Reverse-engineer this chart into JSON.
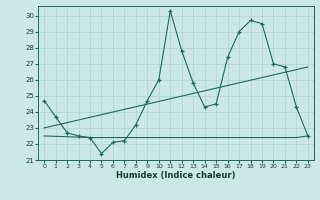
{
  "background_color": "#cce8e5",
  "grid_color": "#aad4ce",
  "line_color": "#1a6b5a",
  "xlabel": "Humidex (Indice chaleur)",
  "xlim": [
    -0.5,
    23.5
  ],
  "ylim": [
    21.0,
    30.6
  ],
  "yticks": [
    21,
    22,
    23,
    24,
    25,
    26,
    27,
    28,
    29,
    30
  ],
  "xticks": [
    0,
    1,
    2,
    3,
    4,
    5,
    6,
    7,
    8,
    9,
    10,
    11,
    12,
    13,
    14,
    15,
    16,
    17,
    18,
    19,
    20,
    21,
    22,
    23
  ],
  "main_x": [
    0,
    1,
    2,
    3,
    4,
    5,
    6,
    7,
    8,
    9,
    10,
    11,
    12,
    13,
    14,
    15,
    16,
    17,
    18,
    19,
    20,
    21,
    22,
    23
  ],
  "main_y": [
    24.7,
    23.7,
    22.7,
    22.5,
    22.4,
    21.4,
    22.1,
    22.2,
    23.2,
    24.7,
    26.0,
    30.3,
    27.8,
    25.8,
    24.3,
    24.5,
    27.4,
    29.0,
    29.7,
    29.5,
    27.0,
    26.8,
    24.3,
    22.5
  ],
  "flat_x": [
    0,
    4,
    5,
    6,
    7,
    8,
    9,
    10,
    11,
    12,
    13,
    14,
    15,
    16,
    17,
    18,
    19,
    20,
    21,
    22,
    23
  ],
  "flat_y": [
    22.5,
    22.4,
    22.4,
    22.4,
    22.4,
    22.4,
    22.4,
    22.4,
    22.4,
    22.4,
    22.4,
    22.4,
    22.4,
    22.4,
    22.4,
    22.4,
    22.4,
    22.4,
    22.4,
    22.4,
    22.5
  ],
  "trend_x": [
    0,
    23
  ],
  "trend_y": [
    23.0,
    26.8
  ]
}
